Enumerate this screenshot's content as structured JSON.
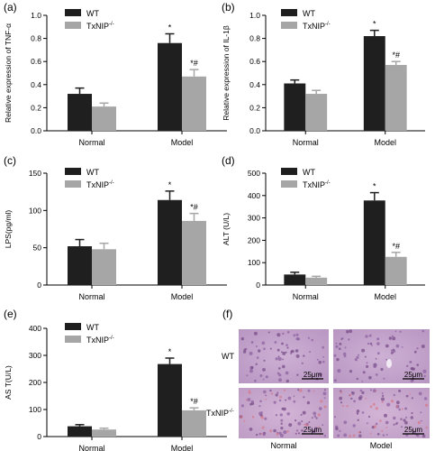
{
  "colors": {
    "wt": "#1f1f1f",
    "txnip": "#a6a6a6"
  },
  "chart_data": [
    {
      "panel": "(a)",
      "type": "bar",
      "categories": [
        "Normal",
        "Model"
      ],
      "ylabel": "Relative expression of TNF-α",
      "ylim": [
        0,
        1.0
      ],
      "yticks": [
        0,
        0.2,
        0.4,
        0.6,
        0.8,
        1.0
      ],
      "ytick_labels": [
        "0.0",
        "0.2",
        "0.4",
        "0.6",
        "0.8",
        "1.0"
      ],
      "series": [
        {
          "name": "WT",
          "values": [
            0.32,
            0.76
          ],
          "errors": [
            0.05,
            0.08
          ]
        },
        {
          "name": "TxNIP",
          "values": [
            0.21,
            0.47
          ],
          "errors": [
            0.03,
            0.06
          ]
        }
      ],
      "annotations": [
        {
          "series": 0,
          "category": 1,
          "text": "*"
        },
        {
          "series": 1,
          "category": 1,
          "text": "*#"
        }
      ]
    },
    {
      "panel": "(b)",
      "type": "bar",
      "categories": [
        "Normal",
        "Model"
      ],
      "ylabel": "Relative expression of IL-1β",
      "ylim": [
        0,
        1.0
      ],
      "yticks": [
        0,
        0.2,
        0.4,
        0.6,
        0.8,
        1.0
      ],
      "ytick_labels": [
        "0.0",
        "0.2",
        "0.4",
        "0.6",
        "0.8",
        "1.0"
      ],
      "series": [
        {
          "name": "WT",
          "values": [
            0.41,
            0.82
          ],
          "errors": [
            0.03,
            0.05
          ]
        },
        {
          "name": "TxNIP",
          "values": [
            0.32,
            0.57
          ],
          "errors": [
            0.03,
            0.03
          ]
        }
      ],
      "annotations": [
        {
          "series": 0,
          "category": 1,
          "text": "*"
        },
        {
          "series": 1,
          "category": 1,
          "text": "*#"
        }
      ]
    },
    {
      "panel": "(c)",
      "type": "bar",
      "categories": [
        "Normal",
        "Model"
      ],
      "ylabel": "LPS(pg/ml)",
      "ylim": [
        0,
        150
      ],
      "yticks": [
        0,
        50,
        100,
        150
      ],
      "ytick_labels": [
        "0",
        "50",
        "100",
        "150"
      ],
      "series": [
        {
          "name": "WT",
          "values": [
            52,
            114
          ],
          "errors": [
            9,
            12
          ]
        },
        {
          "name": "TxNIP",
          "values": [
            48,
            86
          ],
          "errors": [
            8,
            10
          ]
        }
      ],
      "annotations": [
        {
          "series": 0,
          "category": 1,
          "text": "*"
        },
        {
          "series": 1,
          "category": 1,
          "text": "*#"
        }
      ]
    },
    {
      "panel": "(d)",
      "type": "bar",
      "categories": [
        "Normal",
        "Model"
      ],
      "ylabel": "ALT (U/L)",
      "ylim": [
        0,
        500
      ],
      "yticks": [
        0,
        100,
        200,
        300,
        400,
        500
      ],
      "ytick_labels": [
        "0",
        "100",
        "200",
        "300",
        "400",
        "500"
      ],
      "series": [
        {
          "name": "WT",
          "values": [
            47,
            378
          ],
          "errors": [
            10,
            35
          ]
        },
        {
          "name": "TxNIP",
          "values": [
            33,
            126
          ],
          "errors": [
            6,
            20
          ]
        }
      ],
      "annotations": [
        {
          "series": 0,
          "category": 1,
          "text": "*"
        },
        {
          "series": 1,
          "category": 1,
          "text": "*#"
        }
      ]
    },
    {
      "panel": "(e)",
      "type": "bar",
      "categories": [
        "Normal",
        "Model"
      ],
      "ylabel": "AS T(U/L)",
      "ylim": [
        0,
        400
      ],
      "yticks": [
        0,
        100,
        200,
        300,
        400
      ],
      "ytick_labels": [
        "0",
        "100",
        "200",
        "300",
        "400"
      ],
      "series": [
        {
          "name": "WT",
          "values": [
            38,
            268
          ],
          "errors": [
            6,
            22
          ]
        },
        {
          "name": "TxNIP",
          "values": [
            26,
            97
          ],
          "errors": [
            5,
            9
          ]
        }
      ],
      "annotations": [
        {
          "series": 0,
          "category": 1,
          "text": "*"
        },
        {
          "series": 1,
          "category": 1,
          "text": "*#"
        }
      ]
    }
  ],
  "legend": {
    "wt": "WT",
    "txnip_base": "TxNIP",
    "txnip_sup": "-/-"
  },
  "histology": {
    "panel": "(f)",
    "row_wt": "WT",
    "row_txnip_base": "TxNIP",
    "row_txnip_sup": "-/-",
    "col_normal": "Normal",
    "col_model": "Model",
    "scale_bar": "25μm"
  }
}
